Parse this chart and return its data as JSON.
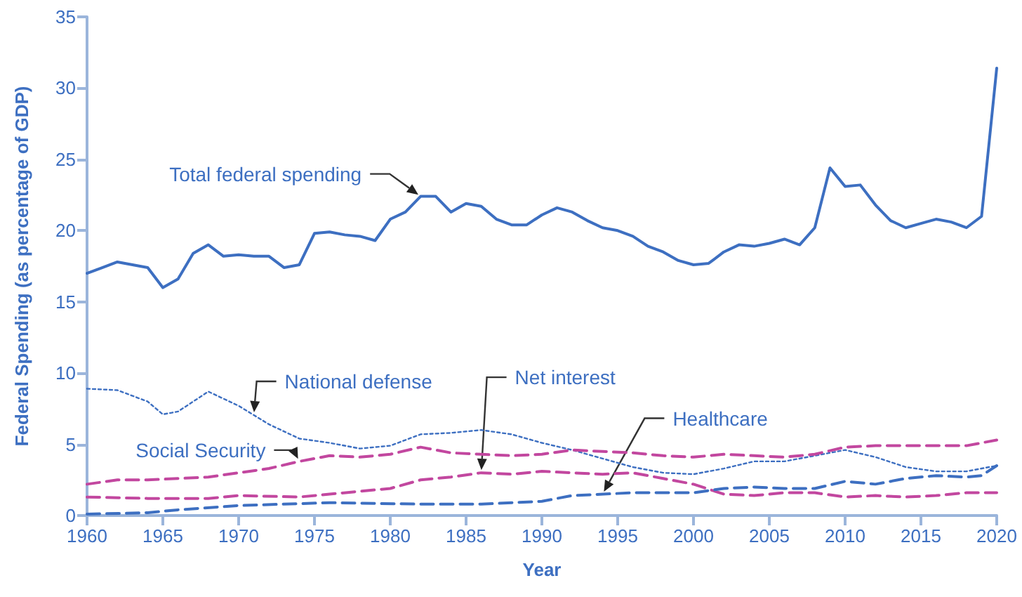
{
  "chart_data": {
    "type": "line",
    "xlabel": "Year",
    "ylabel": "Federal Spending (as percentage of GDP)",
    "xlim": [
      1960,
      2020
    ],
    "xticks": [
      1960,
      1965,
      1970,
      1975,
      1980,
      1985,
      1990,
      1995,
      2000,
      2005,
      2010,
      2015,
      2020
    ],
    "ylim": [
      0,
      35
    ],
    "yticks": [
      0,
      5,
      10,
      15,
      20,
      25,
      30,
      35
    ],
    "grid": false,
    "legend": false,
    "marker": "none",
    "series": [
      {
        "name": "Total federal spending",
        "color": "#3d6fc1",
        "line_style": "solid",
        "x": [
          1960,
          1961,
          1962,
          1963,
          1964,
          1965,
          1966,
          1967,
          1968,
          1969,
          1970,
          1971,
          1972,
          1973,
          1974,
          1975,
          1976,
          1977,
          1978,
          1979,
          1980,
          1981,
          1982,
          1983,
          1984,
          1985,
          1986,
          1987,
          1988,
          1989,
          1990,
          1991,
          1992,
          1993,
          1994,
          1995,
          1996,
          1997,
          1998,
          1999,
          2000,
          2001,
          2002,
          2003,
          2004,
          2005,
          2006,
          2007,
          2008,
          2009,
          2010,
          2011,
          2012,
          2013,
          2014,
          2015,
          2016,
          2017,
          2018,
          2019,
          2020
        ],
        "values": [
          17.0,
          17.4,
          17.8,
          17.6,
          17.4,
          16.0,
          16.6,
          18.4,
          19.0,
          18.2,
          18.3,
          18.2,
          18.2,
          17.4,
          17.6,
          19.8,
          19.9,
          19.7,
          19.6,
          19.3,
          20.8,
          21.3,
          22.4,
          22.4,
          21.3,
          21.9,
          21.7,
          20.8,
          20.4,
          20.4,
          21.1,
          21.6,
          21.3,
          20.7,
          20.2,
          20.0,
          19.6,
          18.9,
          18.5,
          17.9,
          17.6,
          17.7,
          18.5,
          19.0,
          18.9,
          19.1,
          19.4,
          19.0,
          20.2,
          24.4,
          23.1,
          23.2,
          21.8,
          20.7,
          20.2,
          20.5,
          20.8,
          20.6,
          20.2,
          21.0,
          31.4
        ]
      },
      {
        "name": "National defense",
        "color": "#3d6fc1",
        "line_style": "dotted",
        "x": [
          1960,
          1962,
          1964,
          1965,
          1966,
          1968,
          1970,
          1972,
          1974,
          1976,
          1978,
          1980,
          1982,
          1984,
          1986,
          1988,
          1990,
          1992,
          1994,
          1996,
          1998,
          2000,
          2002,
          2004,
          2006,
          2008,
          2010,
          2012,
          2014,
          2016,
          2018,
          2020
        ],
        "values": [
          8.9,
          8.8,
          8.0,
          7.1,
          7.3,
          8.7,
          7.7,
          6.4,
          5.4,
          5.1,
          4.7,
          4.9,
          5.7,
          5.8,
          6.0,
          5.7,
          5.1,
          4.6,
          4.0,
          3.4,
          3.0,
          2.9,
          3.3,
          3.8,
          3.8,
          4.2,
          4.6,
          4.1,
          3.4,
          3.1,
          3.1,
          3.5
        ]
      },
      {
        "name": "Social Security",
        "color": "#c2479f",
        "line_style": "dashed",
        "x": [
          1960,
          1962,
          1964,
          1966,
          1968,
          1970,
          1972,
          1974,
          1976,
          1978,
          1980,
          1982,
          1984,
          1986,
          1988,
          1990,
          1992,
          1994,
          1996,
          1998,
          2000,
          2002,
          2004,
          2006,
          2008,
          2010,
          2012,
          2014,
          2016,
          2018,
          2020
        ],
        "values": [
          2.2,
          2.5,
          2.5,
          2.6,
          2.7,
          3.0,
          3.3,
          3.8,
          4.2,
          4.1,
          4.3,
          4.8,
          4.4,
          4.3,
          4.2,
          4.3,
          4.6,
          4.5,
          4.4,
          4.2,
          4.1,
          4.3,
          4.2,
          4.1,
          4.3,
          4.8,
          4.9,
          4.9,
          4.9,
          4.9,
          5.3
        ]
      },
      {
        "name": "Net interest",
        "color": "#c2479f",
        "line_style": "dashed",
        "x": [
          1960,
          1964,
          1968,
          1970,
          1974,
          1976,
          1980,
          1982,
          1984,
          1986,
          1988,
          1990,
          1992,
          1994,
          1996,
          1998,
          2000,
          2002,
          2004,
          2006,
          2008,
          2010,
          2012,
          2014,
          2016,
          2018,
          2020
        ],
        "values": [
          1.3,
          1.2,
          1.2,
          1.4,
          1.3,
          1.5,
          1.9,
          2.5,
          2.7,
          3.0,
          2.9,
          3.1,
          3.0,
          2.9,
          3.0,
          2.6,
          2.2,
          1.5,
          1.4,
          1.6,
          1.6,
          1.3,
          1.4,
          1.3,
          1.4,
          1.6,
          1.6
        ]
      },
      {
        "name": "Healthcare",
        "color": "#3d6fc1",
        "line_style": "dashed",
        "x": [
          1960,
          1964,
          1966,
          1970,
          1976,
          1982,
          1986,
          1990,
          1992,
          1996,
          2000,
          2002,
          2004,
          2006,
          2008,
          2010,
          2012,
          2014,
          2016,
          2018,
          2019,
          2020
        ],
        "values": [
          0.1,
          0.2,
          0.4,
          0.7,
          0.9,
          0.8,
          0.8,
          1.0,
          1.4,
          1.6,
          1.6,
          1.9,
          2.0,
          1.9,
          1.9,
          2.4,
          2.2,
          2.6,
          2.8,
          2.7,
          2.8,
          3.5
        ]
      }
    ]
  }
}
